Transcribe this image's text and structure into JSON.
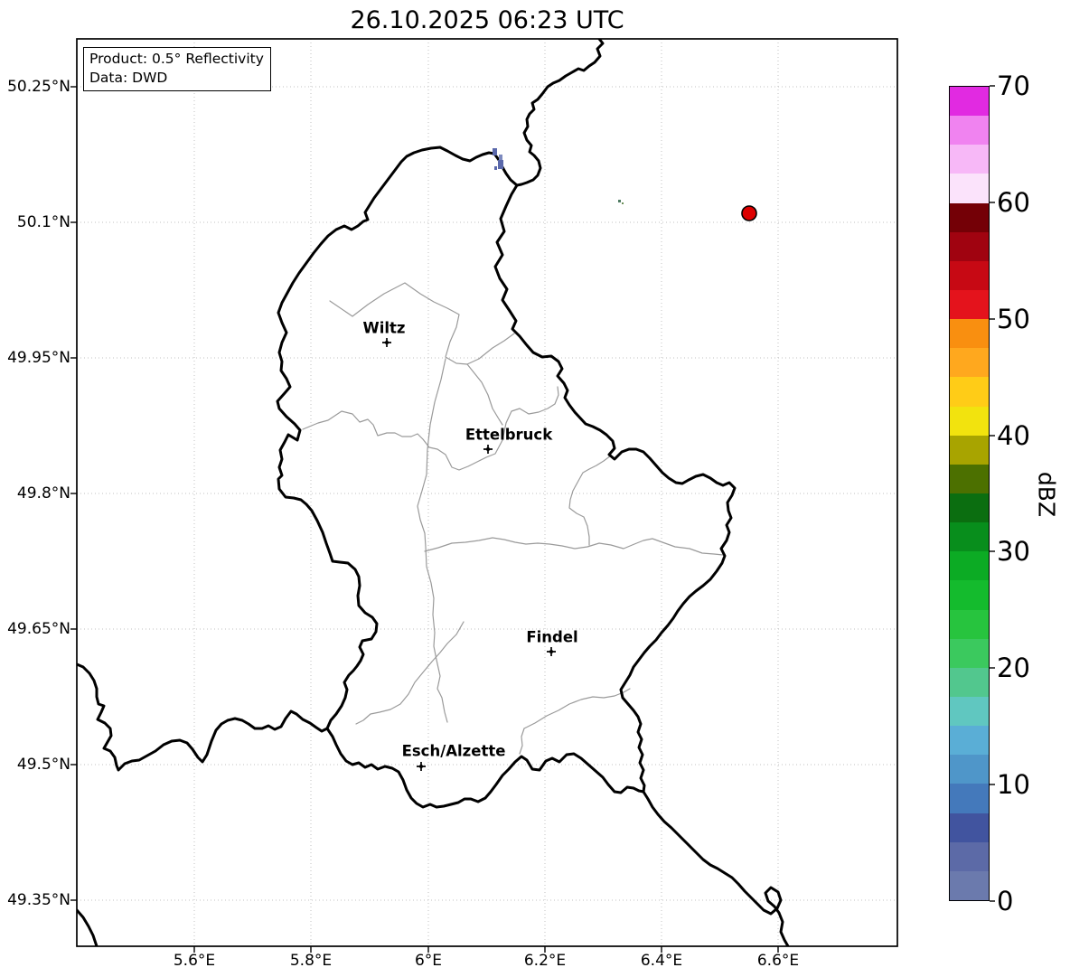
{
  "title": "26.10.2025 06:23 UTC",
  "info_box": {
    "line1": "Product: 0.5° Reflectivity",
    "line2": "Data: DWD"
  },
  "axes": {
    "lon_ticks": [
      "5.6°E",
      "5.8°E",
      "6°E",
      "6.2°E",
      "6.4°E",
      "6.6°E"
    ],
    "lat_ticks": [
      "50.25°N",
      "50.1°N",
      "49.95°N",
      "49.8°N",
      "49.65°N",
      "49.5°N",
      "49.35°N"
    ]
  },
  "map": {
    "cities": [
      {
        "name": "Wiltz"
      },
      {
        "name": "Ettelbruck"
      },
      {
        "name": "Findel"
      },
      {
        "name": "Esch/Alzette"
      }
    ],
    "border_color": "#000000",
    "district_border_color": "#9a9a9a",
    "gridline_color": "#c2c2c2"
  },
  "radar_echoes": [
    {
      "name": "small-echo-cluster",
      "color": "#5a68ab",
      "approx_position": "6.11°E 50.17°N",
      "dbz_band": "0-5"
    },
    {
      "name": "tiny-echo-speck",
      "color": "#4e7a62",
      "approx_position": "6.33°E 50.13°N",
      "dbz_band": "20-30"
    },
    {
      "name": "red-circle-marker",
      "color": "#dd0000",
      "approx_position": "6.55°E 50.11°N"
    }
  ],
  "colorbar": {
    "label": "dBZ",
    "min": 0,
    "max": 70,
    "segment_step": 2.5,
    "ticks": [
      "0",
      "10",
      "20",
      "30",
      "40",
      "50",
      "60",
      "70"
    ],
    "colors_top_to_bottom": [
      "#e12ae1",
      "#f083f0",
      "#f7b8f7",
      "#fbe3fb",
      "#740006",
      "#a00310",
      "#c70914",
      "#e4131c",
      "#f98f10",
      "#ffa81e",
      "#ffcc17",
      "#f2e30e",
      "#a8a400",
      "#4c7000",
      "#0b6e10",
      "#088e1c",
      "#0cab24",
      "#14bb2d",
      "#27c43e",
      "#3bc95e",
      "#52c78e",
      "#60c7c0",
      "#5aaed6",
      "#4f96c9",
      "#4479bb",
      "#41549f",
      "#5c6aa7",
      "#6b7aad"
    ]
  }
}
